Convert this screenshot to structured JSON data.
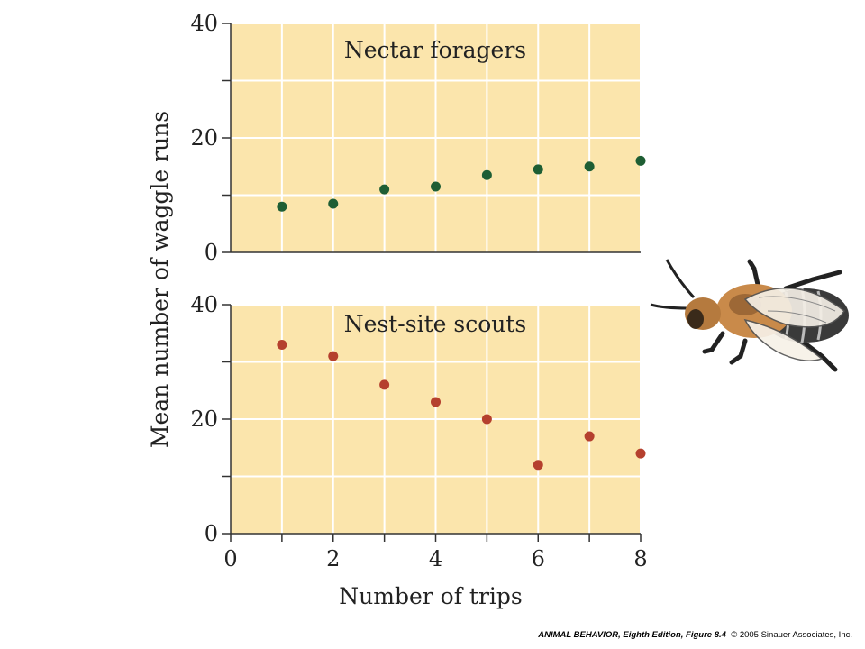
{
  "chart_data": [
    {
      "type": "scatter",
      "title": "Nectar foragers",
      "x": [
        1,
        2,
        3,
        4,
        5,
        6,
        7,
        8
      ],
      "y": [
        8,
        8.5,
        11,
        11.5,
        13.5,
        14.5,
        15,
        16
      ],
      "xlim": [
        0,
        8
      ],
      "ylim": [
        0,
        40
      ],
      "yticks": [
        0,
        20,
        40
      ],
      "ylabel": "Mean number of waggle runs",
      "grid": true,
      "color": "#1e5e34"
    },
    {
      "type": "scatter",
      "title": "Nest-site scouts",
      "x": [
        1,
        2,
        3,
        4,
        5,
        6,
        7,
        8
      ],
      "y": [
        33,
        31,
        26,
        23,
        20,
        12,
        17,
        14
      ],
      "xlim": [
        0,
        8
      ],
      "ylim": [
        0,
        40
      ],
      "xticks": [
        0,
        2,
        4,
        6,
        8
      ],
      "yticks": [
        0,
        20,
        40
      ],
      "xlabel": "Number of trips",
      "grid": true,
      "color": "#b5402e"
    }
  ],
  "colors": {
    "panel_background": "#fbe5ac",
    "grid": "#ffffff",
    "axis": "#333333"
  },
  "illustration": "bee-icon",
  "credit": {
    "book": "ANIMAL BEHAVIOR, Eighth Edition, Figure 8.4",
    "copyright": "© 2005 Sinauer Associates, Inc."
  }
}
